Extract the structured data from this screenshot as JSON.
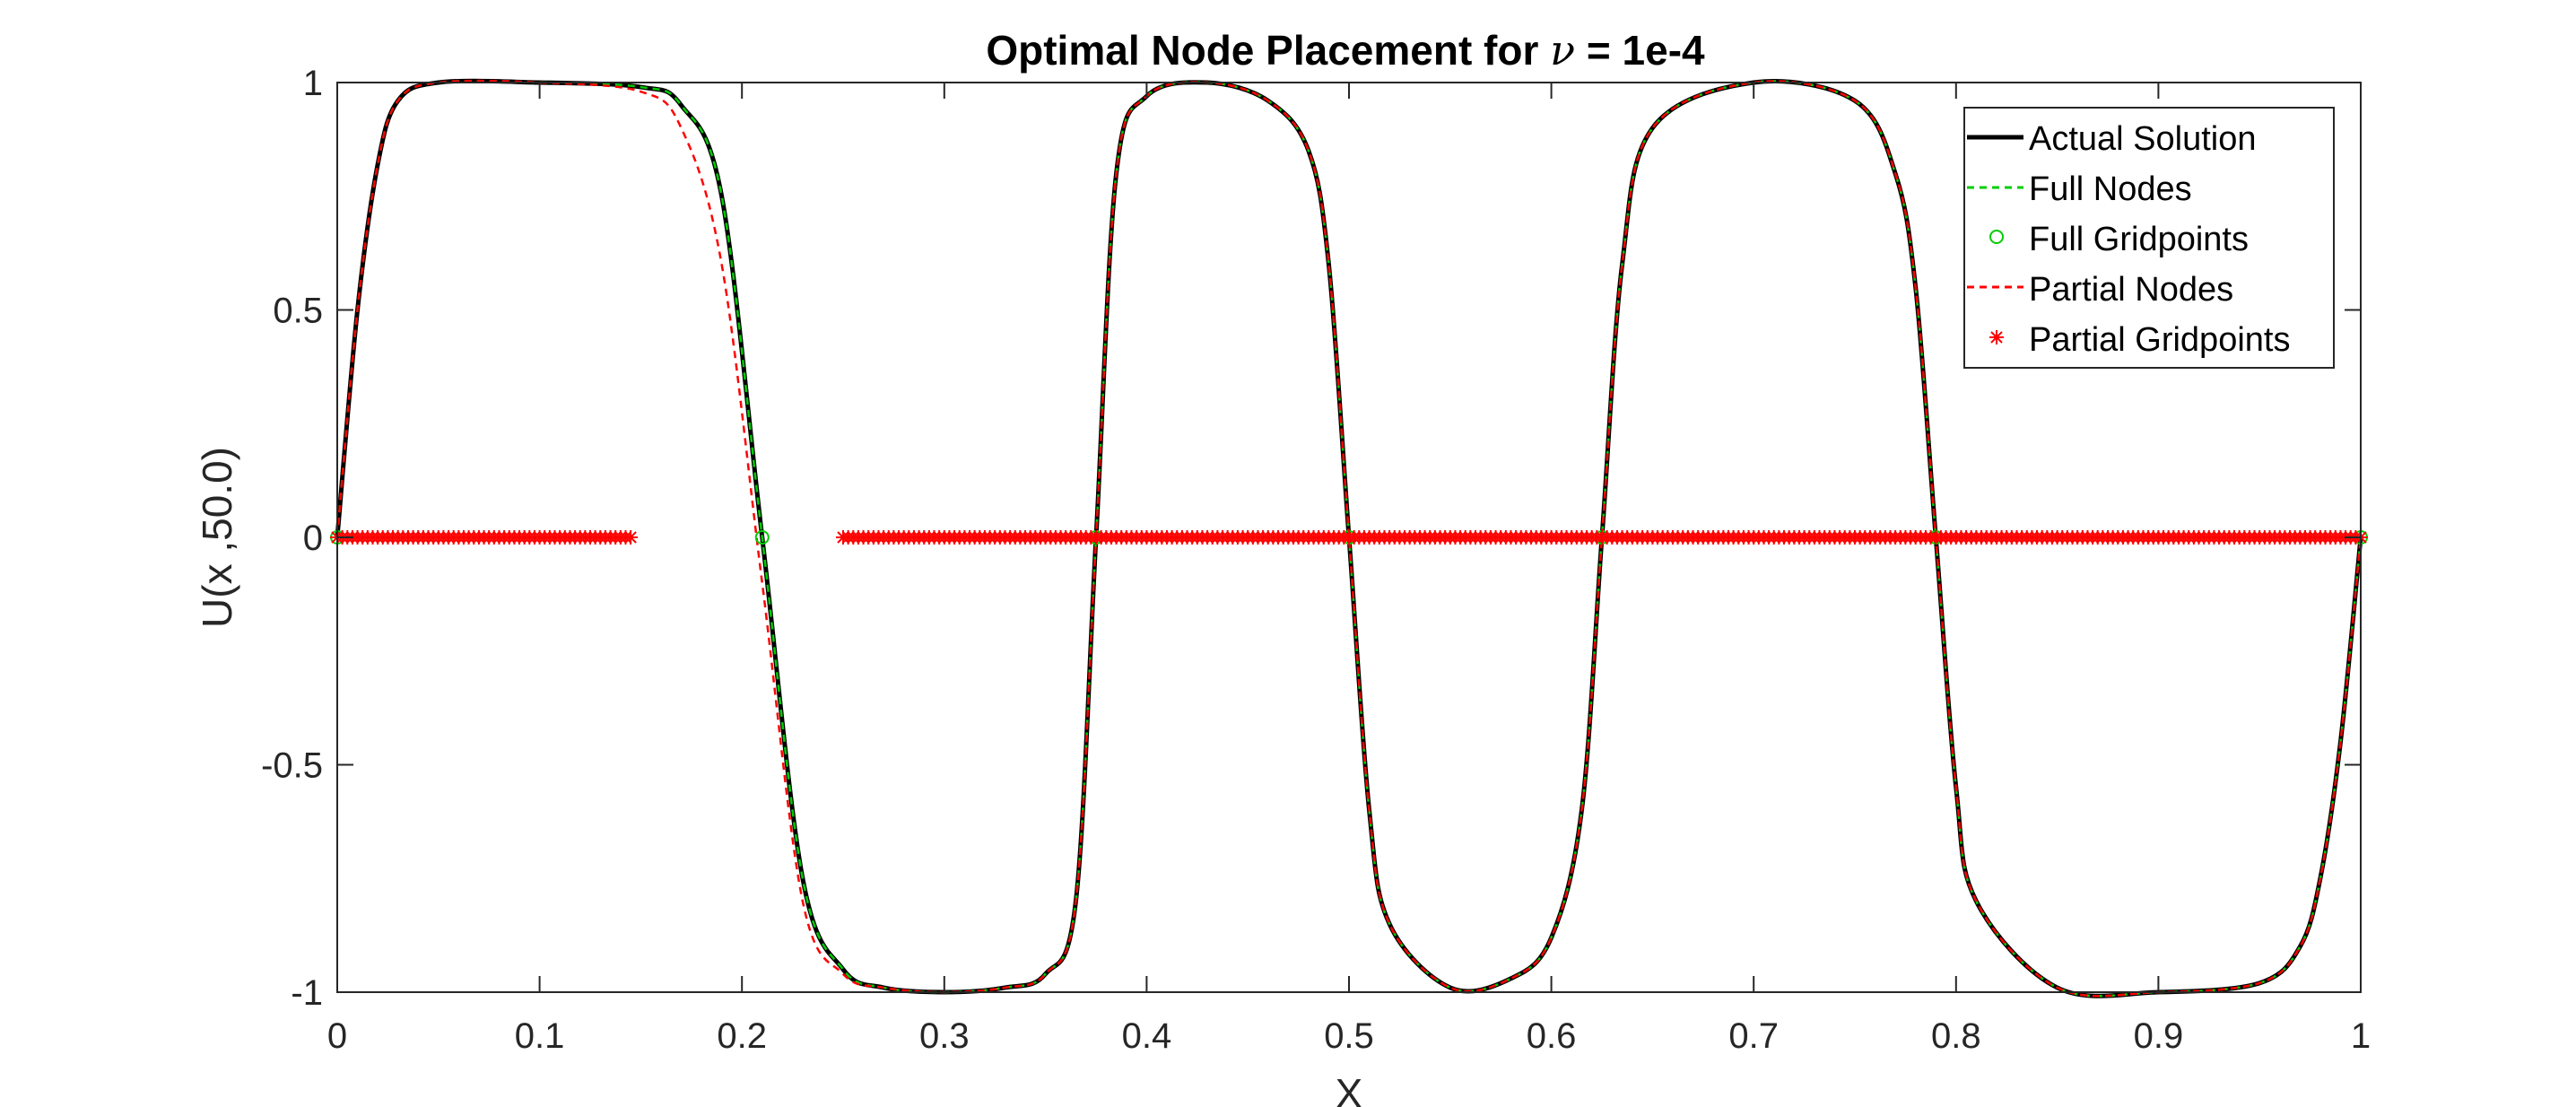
{
  "chart_data": {
    "type": "line",
    "title_prefix": "Optimal Node Placement for ",
    "title_symbol": "ν",
    "title_suffix": " = 1e-4",
    "xlabel": "X",
    "ylabel": "U(x ,50.0)",
    "xlim": [
      0,
      1
    ],
    "ylim": [
      -1,
      1
    ],
    "xticks": [
      0,
      0.1,
      0.2,
      0.3,
      0.4,
      0.5,
      0.6,
      0.7,
      0.8,
      0.9,
      1
    ],
    "xtick_labels": [
      "0",
      "0.1",
      "0.2",
      "0.3",
      "0.4",
      "0.5",
      "0.6",
      "0.7",
      "0.8",
      "0.9",
      "1"
    ],
    "yticks": [
      1,
      0.5,
      0,
      -0.5,
      -1
    ],
    "ytick_labels": [
      "1",
      "0.5",
      "0",
      "-0.5",
      "-1"
    ],
    "grid": false,
    "box": true,
    "legend_position": "top-right",
    "zero_crossings": [
      0,
      0.21,
      0.375,
      0.5,
      0.625,
      0.79,
      1.0
    ],
    "series": [
      {
        "name": "Actual Solution",
        "kind": "line",
        "style": "solid",
        "color": "#000000",
        "x": [
          0,
          0.01,
          0.02,
          0.03,
          0.05,
          0.1,
          0.15,
          0.17,
          0.19,
          0.21,
          0.23,
          0.25,
          0.27,
          0.3,
          0.33,
          0.35,
          0.365,
          0.375,
          0.385,
          0.4,
          0.43,
          0.46,
          0.48,
          0.49,
          0.5,
          0.51,
          0.52,
          0.55,
          0.58,
          0.6,
          0.615,
          0.625,
          0.635,
          0.65,
          0.7,
          0.75,
          0.77,
          0.78,
          0.79,
          0.8,
          0.81,
          0.85,
          0.9,
          0.95,
          0.97,
          0.98,
          0.99,
          1.0
        ],
        "y": [
          0,
          0.5,
          0.82,
          0.96,
          1.0,
          1.0,
          0.99,
          0.95,
          0.75,
          0.0,
          -0.75,
          -0.95,
          -0.99,
          -1.0,
          -0.99,
          -0.96,
          -0.8,
          0.0,
          0.8,
          0.97,
          1.0,
          0.96,
          0.85,
          0.6,
          0.0,
          -0.6,
          -0.85,
          -0.99,
          -0.97,
          -0.88,
          -0.6,
          0.0,
          0.6,
          0.9,
          1.0,
          0.96,
          0.8,
          0.55,
          0.0,
          -0.55,
          -0.8,
          -0.99,
          -1.0,
          -0.98,
          -0.9,
          -0.75,
          -0.45,
          0.0
        ]
      },
      {
        "name": "Full Nodes",
        "kind": "line",
        "style": "dashed",
        "color": "#00cc00",
        "x": [
          0,
          0.01,
          0.02,
          0.03,
          0.05,
          0.1,
          0.15,
          0.17,
          0.19,
          0.21,
          0.23,
          0.25,
          0.27,
          0.3,
          0.33,
          0.35,
          0.365,
          0.375,
          0.385,
          0.4,
          0.43,
          0.46,
          0.48,
          0.49,
          0.5,
          0.51,
          0.52,
          0.55,
          0.58,
          0.6,
          0.615,
          0.625,
          0.635,
          0.65,
          0.7,
          0.75,
          0.77,
          0.78,
          0.79,
          0.8,
          0.81,
          0.85,
          0.9,
          0.95,
          0.97,
          0.98,
          0.99,
          1.0
        ],
        "y": [
          0,
          0.5,
          0.82,
          0.96,
          1.0,
          1.0,
          0.99,
          0.95,
          0.75,
          0.0,
          -0.75,
          -0.95,
          -0.99,
          -1.0,
          -0.99,
          -0.96,
          -0.8,
          0.0,
          0.8,
          0.97,
          1.0,
          0.96,
          0.85,
          0.6,
          0.0,
          -0.6,
          -0.85,
          -0.99,
          -0.97,
          -0.88,
          -0.6,
          0.0,
          0.6,
          0.9,
          1.0,
          0.96,
          0.8,
          0.55,
          0.0,
          -0.55,
          -0.8,
          -0.99,
          -1.0,
          -0.98,
          -0.9,
          -0.75,
          -0.45,
          0.0
        ]
      },
      {
        "name": "Full Gridpoints",
        "kind": "markers",
        "marker": "circle",
        "color": "#00cc00",
        "x": [
          0,
          0.21,
          0.375,
          0.5,
          0.625,
          0.79,
          1.0
        ],
        "y": [
          0,
          0,
          0,
          0,
          0,
          0,
          0
        ]
      },
      {
        "name": "Partial Nodes",
        "kind": "line",
        "style": "dashed",
        "color": "#ff0000",
        "x": [
          0,
          0.01,
          0.02,
          0.03,
          0.05,
          0.1,
          0.15,
          0.17,
          0.19,
          0.21,
          0.23,
          0.25,
          0.27,
          0.3,
          0.33,
          0.35,
          0.365,
          0.375,
          0.385,
          0.4,
          0.43,
          0.46,
          0.48,
          0.49,
          0.5,
          0.51,
          0.52,
          0.55,
          0.58,
          0.6,
          0.615,
          0.625,
          0.635,
          0.65,
          0.7,
          0.75,
          0.77,
          0.78,
          0.79,
          0.8,
          0.81,
          0.85,
          0.9,
          0.95,
          0.97,
          0.98,
          0.99,
          1.0
        ],
        "y": [
          0,
          0.5,
          0.82,
          0.96,
          1.0,
          1.0,
          0.98,
          0.9,
          0.6,
          -0.1,
          -0.8,
          -0.96,
          -0.99,
          -1.0,
          -0.99,
          -0.96,
          -0.8,
          0.0,
          0.8,
          0.97,
          1.0,
          0.96,
          0.85,
          0.6,
          0.0,
          -0.6,
          -0.85,
          -0.99,
          -0.97,
          -0.88,
          -0.6,
          0.0,
          0.6,
          0.9,
          1.0,
          0.96,
          0.8,
          0.55,
          0.0,
          -0.55,
          -0.8,
          -0.99,
          -1.0,
          -0.98,
          -0.9,
          -0.75,
          -0.45,
          0.0
        ]
      },
      {
        "name": "Partial Gridpoints",
        "kind": "markers",
        "marker": "asterisk",
        "color": "#ff0000",
        "segments": [
          {
            "x_start": 0.0,
            "x_end": 0.147
          },
          {
            "x_start": 0.25,
            "x_end": 1.0
          }
        ],
        "spacing": 0.0025,
        "y": 0
      }
    ]
  }
}
